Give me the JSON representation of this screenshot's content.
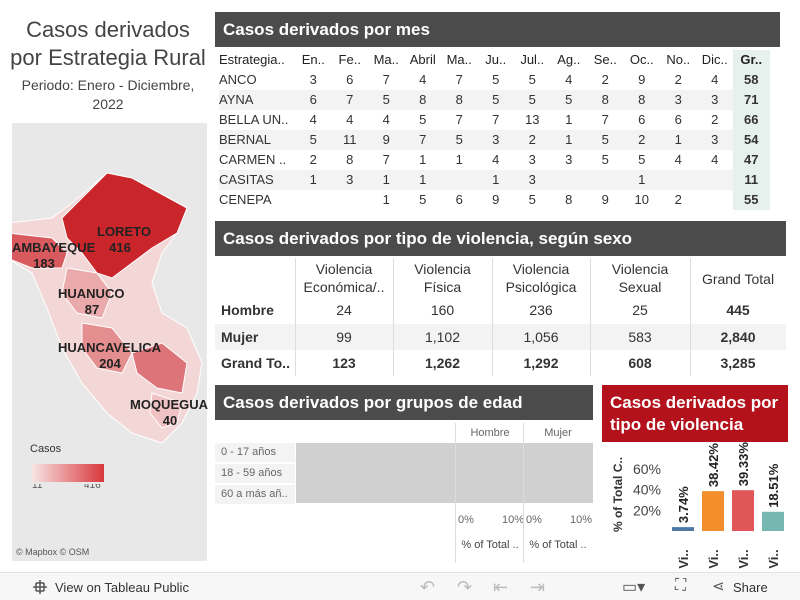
{
  "header": {
    "title": "Casos derivados por Estrategia Rural",
    "subtitle": "Periodo: Enero - Diciembre, 2022"
  },
  "map": {
    "labels": [
      {
        "name": "LORETO",
        "value": 416
      },
      {
        "name": "LAMBAYEQUE",
        "value": 183
      },
      {
        "name": "HUANUCO",
        "value": 87
      },
      {
        "name": "HUANCAVELICA",
        "value": 204
      },
      {
        "name": "MOQUEGUA",
        "value": 40
      }
    ],
    "legend_title": "Casos",
    "legend_min": "11",
    "legend_max": "416",
    "attribution": "© Mapbox  © OSM"
  },
  "monthly": {
    "title": "Casos derivados por mes",
    "columns": [
      "Estrategia..",
      "En..",
      "Fe..",
      "Ma..",
      "Abril",
      "Ma..",
      "Ju..",
      "Jul..",
      "Ag..",
      "Se..",
      "Oc..",
      "No..",
      "Dic..",
      "Gr.."
    ],
    "rows": [
      {
        "name": "ANCO",
        "values": [
          3,
          6,
          7,
          4,
          7,
          5,
          5,
          4,
          2,
          9,
          2,
          4
        ],
        "total": 58
      },
      {
        "name": "AYNA",
        "values": [
          6,
          7,
          5,
          8,
          8,
          5,
          5,
          5,
          8,
          8,
          3,
          3
        ],
        "total": 71
      },
      {
        "name": "BELLA UN..",
        "values": [
          4,
          4,
          4,
          5,
          7,
          7,
          13,
          1,
          7,
          6,
          6,
          2
        ],
        "total": 66
      },
      {
        "name": "BERNAL",
        "values": [
          5,
          11,
          9,
          7,
          5,
          3,
          2,
          1,
          5,
          2,
          1,
          3
        ],
        "total": 54
      },
      {
        "name": "CARMEN ..",
        "values": [
          2,
          8,
          7,
          1,
          1,
          4,
          3,
          3,
          5,
          5,
          4,
          4
        ],
        "total": 47
      },
      {
        "name": "CASITAS",
        "values": [
          1,
          3,
          1,
          1,
          null,
          1,
          3,
          null,
          null,
          1,
          null,
          null
        ],
        "total": 11
      },
      {
        "name": "CENEPA",
        "values": [
          null,
          null,
          1,
          5,
          6,
          9,
          5,
          8,
          9,
          10,
          2,
          null
        ],
        "total": 55
      }
    ]
  },
  "violence_sex": {
    "title": "Casos derivados por tipo de violencia, según sexo",
    "columns": [
      "Violencia Económica/..",
      "Violencia Física",
      "Violencia Psicológica",
      "Violencia Sexual",
      "Grand Total"
    ],
    "rows": [
      {
        "name": "Hombre",
        "values": [
          "24",
          "160",
          "236",
          "25",
          "445"
        ]
      },
      {
        "name": "Mujer",
        "values": [
          "99",
          "1,102",
          "1,056",
          "583",
          "2,840"
        ]
      },
      {
        "name": "Grand To..",
        "values": [
          "123",
          "1,262",
          "1,292",
          "608",
          "3,285"
        ]
      }
    ]
  },
  "age": {
    "title": "Casos derivados por grupos de edad",
    "categories": [
      "0 - 17 años",
      "18 - 59 años",
      "60 a más añ.."
    ],
    "columns": [
      {
        "name": "Hombre",
        "ticks": [
          "0%",
          "10%"
        ],
        "axis_title": "% of Total .."
      },
      {
        "name": "Mujer",
        "ticks": [
          "0%",
          "10%"
        ],
        "axis_title": "% of Total .."
      }
    ]
  },
  "chart_data": {
    "type": "bar",
    "title": "Casos derivados por tipo de violencia",
    "y_label": "% of Total C..",
    "categories": [
      "Vi..",
      "Vi..",
      "Vi..",
      "Vi.."
    ],
    "values": [
      3.74,
      38.42,
      39.33,
      18.51
    ],
    "value_labels": [
      "3.74%",
      "38.42%",
      "39.33%",
      "18.51%"
    ],
    "colors": [
      "#4e79a7",
      "#f28e2b",
      "#e15759",
      "#76b7b2"
    ],
    "ylim": [
      0,
      80
    ],
    "yticks": [
      {
        "value": 20,
        "label": "20%"
      },
      {
        "value": 40,
        "label": "40%"
      },
      {
        "value": 60,
        "label": "60%"
      }
    ]
  },
  "toolbar": {
    "view": "View on Tableau Public",
    "share": "Share"
  }
}
